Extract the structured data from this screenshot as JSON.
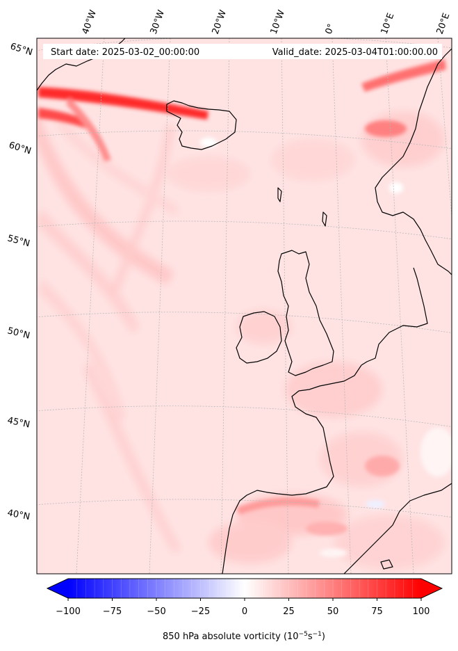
{
  "header": {
    "start_date": "Start date: 2025-03-02_00:00:00",
    "valid_date": "Valid_date: 2025-03-04T01:00:00.00"
  },
  "map": {
    "longitude_labels": [
      "40°W",
      "30°W",
      "20°W",
      "10°W",
      "0°",
      "10°E",
      "20°E"
    ],
    "latitude_labels": [
      "65°N",
      "60°N",
      "55°N",
      "50°N",
      "45°N",
      "40°N"
    ],
    "colors": {
      "background": "#ffe3e3",
      "strong_positive": "#ff1a1a",
      "coastline": "#000000",
      "gridline": "#b8b8b8"
    }
  },
  "colorbar": {
    "label_main": "850 hPa absolute vorticity (10",
    "label_exp1": "−5",
    "label_mid": "s",
    "label_exp2": "−1",
    "label_end": ")",
    "tick_labels": [
      "−100",
      "−75",
      "−50",
      "−25",
      "0",
      "25",
      "50",
      "75",
      "100"
    ],
    "min": -100,
    "max": 100,
    "extend": "both",
    "negative_color": "#0000ff",
    "positive_color": "#ff0000"
  }
}
